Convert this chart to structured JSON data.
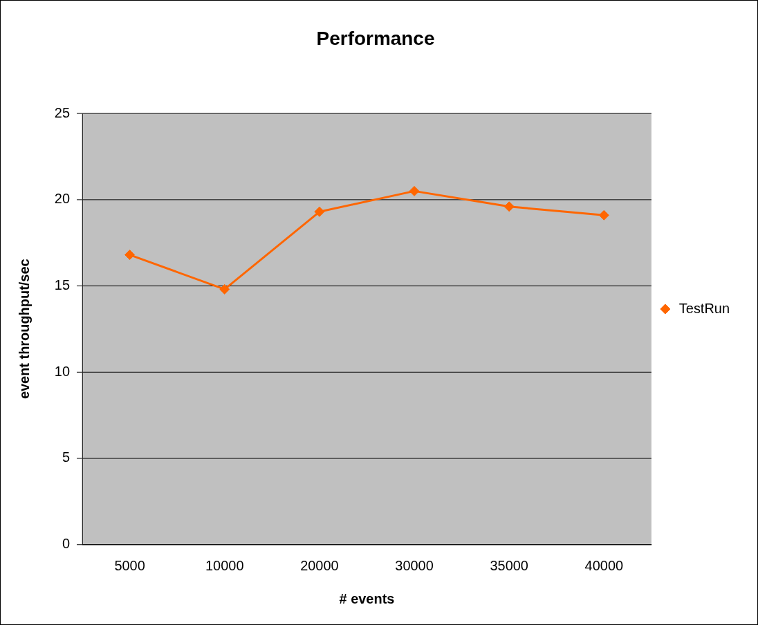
{
  "chart_data": {
    "type": "line",
    "title": "Performance",
    "xlabel": "# events",
    "ylabel": "event throughput/sec",
    "categories": [
      "5000",
      "10000",
      "20000",
      "30000",
      "35000",
      "40000"
    ],
    "series": [
      {
        "name": "TestRun",
        "color": "#ff6600",
        "values": [
          16.8,
          14.8,
          19.3,
          20.5,
          19.6,
          19.1
        ]
      }
    ],
    "ylim": [
      0,
      25
    ],
    "yticks": [
      0,
      5,
      10,
      15,
      20,
      25
    ],
    "grid": "y",
    "legend": "right",
    "marker": "diamond",
    "line_style": "solid"
  }
}
